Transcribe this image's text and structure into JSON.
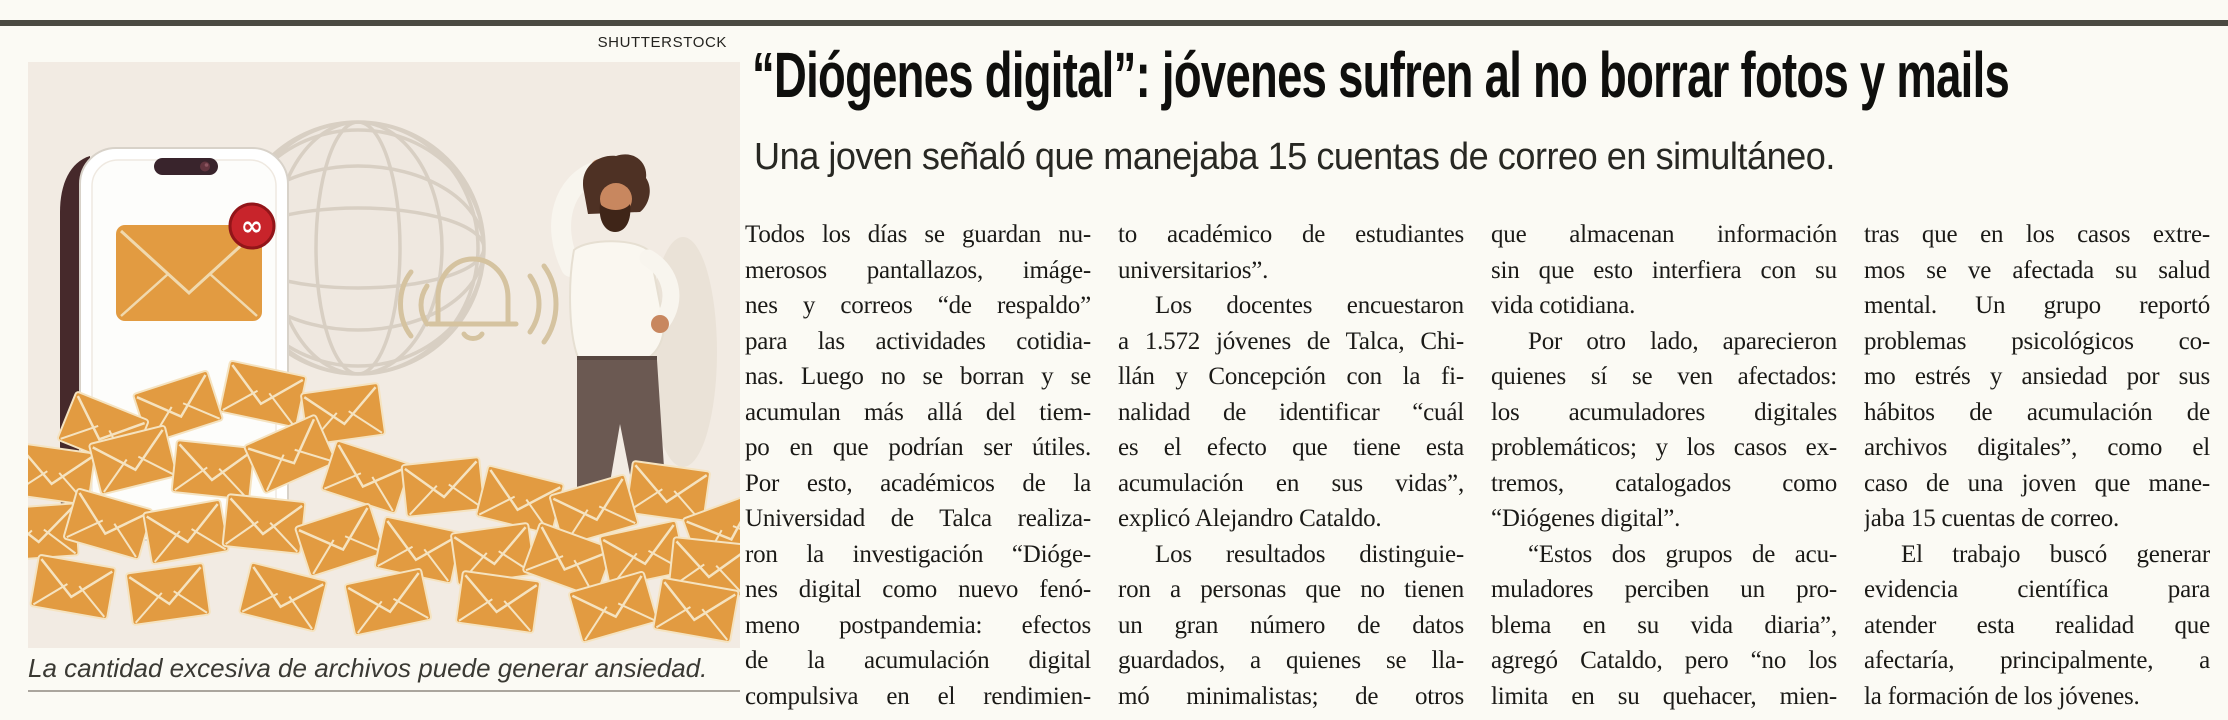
{
  "colors": {
    "accent_orange": "#e29b41",
    "badge_red": "#c8242b",
    "photo_background": "#f2ebe3",
    "page_background": "#fbfaf4",
    "top_rule": "#4b4a42",
    "headline_text": "#0f0f0d",
    "body_text": "#1b1a17"
  },
  "photo": {
    "credit": "SHUTTERSTOCK",
    "caption": "La cantidad excesiva de archivos puede generar ansiedad.",
    "icons": [
      "smartphone",
      "email-envelope",
      "infinity-notification-badge",
      "globe",
      "notification-bell",
      "man-scratching-head",
      "envelope-pile"
    ]
  },
  "article": {
    "headline": "“Diógenes digital”: jóvenes sufren al no borrar fotos y mails",
    "subhead": "Una joven señaló que manejaba 15 cuentas de correo en simultáneo.",
    "columns": [
      {
        "lines": [
          {
            "t": "Todos los días se guardan nu-"
          },
          {
            "t": "merosos pantallazos, imáge-"
          },
          {
            "t": "nes y correos “de respaldo”"
          },
          {
            "t": "para las actividades cotidia-"
          },
          {
            "t": "nas. Luego no se borran y se"
          },
          {
            "t": "acumulan más allá del tiem-"
          },
          {
            "t": "po en que podrían ser útiles."
          },
          {
            "t": "Por esto, académicos de la"
          },
          {
            "t": "Universidad de Talca realiza-"
          },
          {
            "t": "ron la investigación “Dióge-"
          },
          {
            "t": "nes digital como nuevo fenó-"
          },
          {
            "t": "meno postpandemia: efectos"
          },
          {
            "t": "de la acumulación digital"
          },
          {
            "t": "compulsiva en el rendimien-"
          }
        ]
      },
      {
        "lines": [
          {
            "t": "to académico de estudiantes"
          },
          {
            "t": "universitarios”.",
            "end": true
          },
          {
            "t": "Los docentes encuestaron",
            "ind": true
          },
          {
            "t": "a 1.572 jóvenes de Talca, Chi-"
          },
          {
            "t": "llán y Concepción con la fi-"
          },
          {
            "t": "nalidad de identificar “cuál"
          },
          {
            "t": "es el efecto que tiene esta"
          },
          {
            "t": "acumulación en sus vidas”,"
          },
          {
            "t": "explicó Alejandro Cataldo.",
            "end": true
          },
          {
            "t": "Los resultados distinguie-",
            "ind": true
          },
          {
            "t": "ron a personas que no tienen"
          },
          {
            "t": "un gran número de datos"
          },
          {
            "t": "guardados, a quienes se lla-"
          },
          {
            "t": "mó minimalistas; de otros"
          }
        ]
      },
      {
        "lines": [
          {
            "t": "que almacenan información"
          },
          {
            "t": "sin que esto interfiera con su"
          },
          {
            "t": "vida cotidiana.",
            "end": true
          },
          {
            "t": "Por otro lado, aparecieron",
            "ind": true
          },
          {
            "t": "quienes sí se ven afectados:"
          },
          {
            "t": "los acumuladores digitales"
          },
          {
            "t": "problemáticos; y los casos ex-"
          },
          {
            "t": "tremos, catalogados como"
          },
          {
            "t": "“Diógenes digital”.",
            "end": true
          },
          {
            "t": "“Estos dos grupos de acu-",
            "ind": true
          },
          {
            "t": "muladores perciben un pro-"
          },
          {
            "t": "blema en su vida diaria”,"
          },
          {
            "t": "agregó Cataldo, pero “no los"
          },
          {
            "t": "limita en su quehacer, mien-"
          }
        ]
      },
      {
        "lines": [
          {
            "t": "tras que en los casos extre-"
          },
          {
            "t": "mos se ve afectada su salud"
          },
          {
            "t": "mental. Un grupo reportó"
          },
          {
            "t": "problemas psicológicos co-"
          },
          {
            "t": "mo estrés y ansiedad por sus"
          },
          {
            "t": "hábitos de acumulación de"
          },
          {
            "t": "archivos digitales”, como el"
          },
          {
            "t": "caso de una joven que mane-"
          },
          {
            "t": "jaba 15 cuentas de correo.",
            "end": true
          },
          {
            "t": "El trabajo buscó generar",
            "ind": true
          },
          {
            "t": "evidencia científica para"
          },
          {
            "t": "atender esta realidad que"
          },
          {
            "t": "afectaría, principalmente, a"
          },
          {
            "t": "la formación de los jóvenes.",
            "end": true
          }
        ]
      }
    ]
  }
}
